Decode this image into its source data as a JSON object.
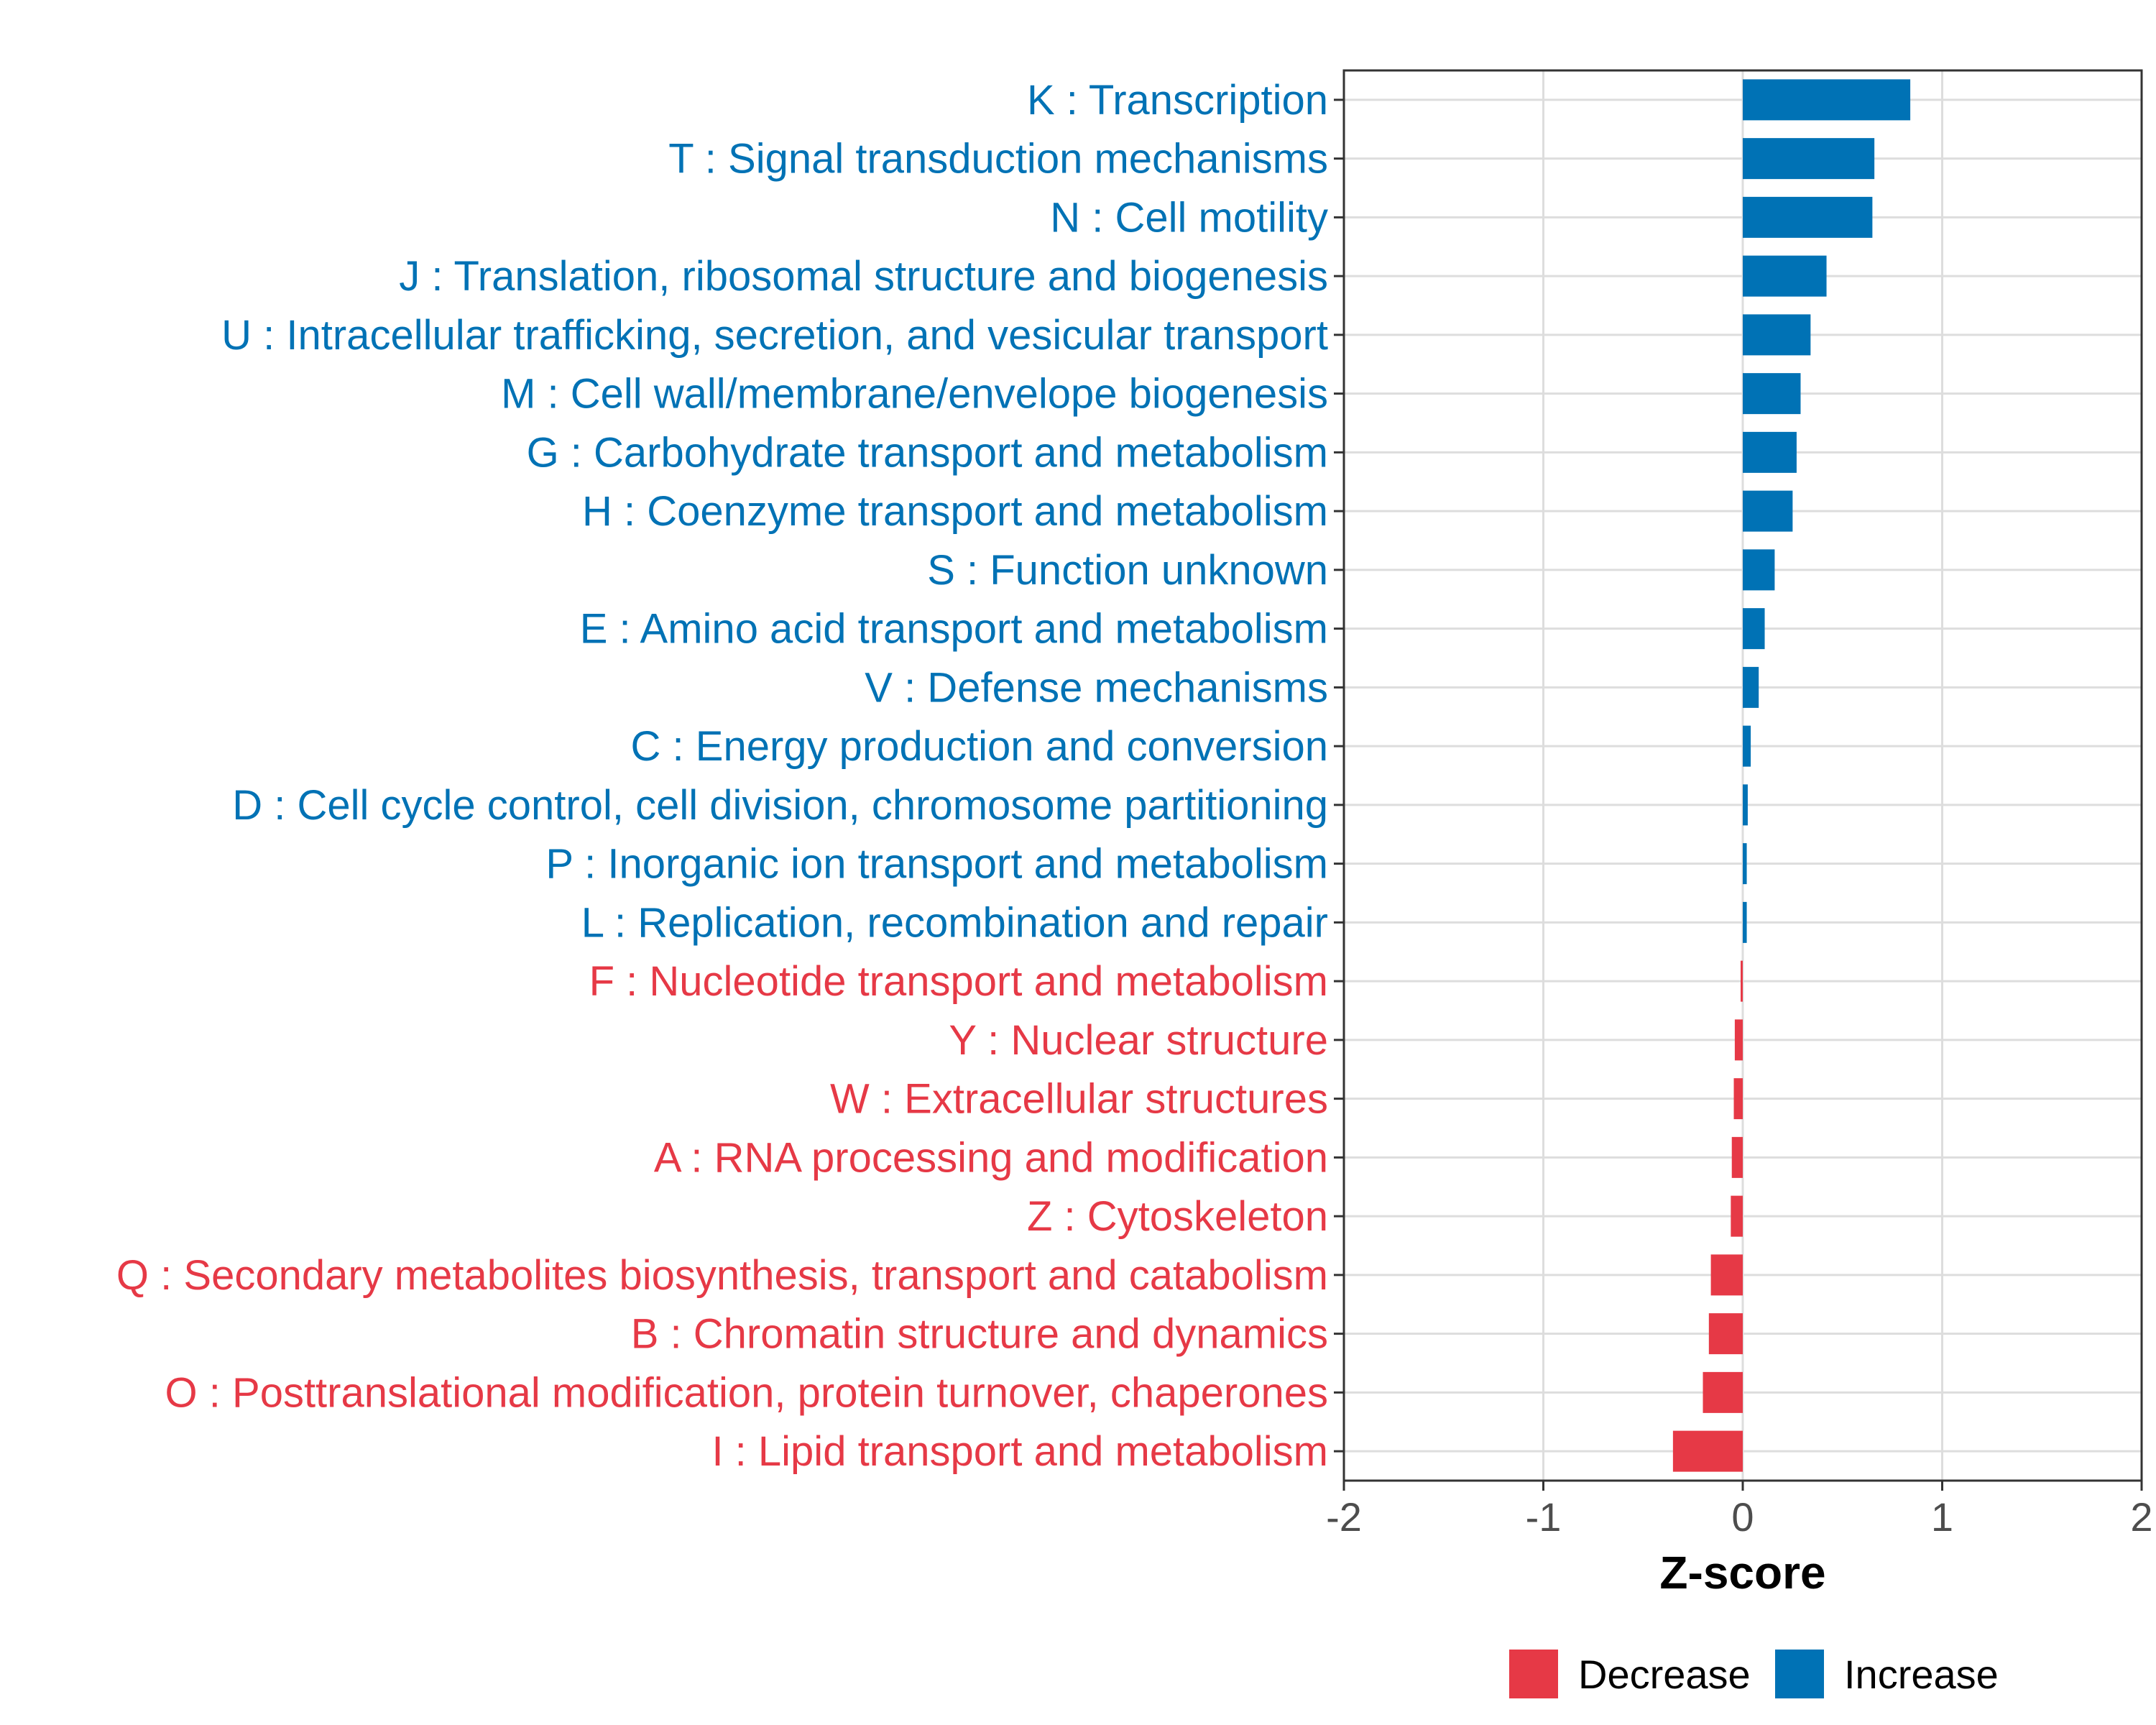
{
  "chart_data": {
    "type": "bar",
    "orientation": "horizontal",
    "xlabel": "Z-score",
    "xlim": [
      -2,
      2
    ],
    "xticks": [
      "-2",
      "-1",
      "0",
      "1",
      "2"
    ],
    "grid": true,
    "colors": {
      "Increase": "#0072B5",
      "Decrease": "#E63946"
    },
    "legend": {
      "position": "bottom",
      "entries": [
        "Decrease",
        "Increase"
      ]
    },
    "categories": [
      "K : Transcription",
      "T : Signal transduction mechanisms",
      "N : Cell motility",
      "J : Translation, ribosomal structure and biogenesis",
      "U : Intracellular trafficking, secretion, and vesicular transport",
      "M : Cell wall/membrane/envelope biogenesis",
      "G : Carbohydrate transport and metabolism",
      "H : Coenzyme transport and metabolism",
      "S : Function unknown",
      "E : Amino acid transport and metabolism",
      "V : Defense mechanisms",
      "C : Energy production and conversion",
      "D : Cell cycle control, cell division, chromosome partitioning",
      "P : Inorganic ion transport and metabolism",
      "L : Replication, recombination and repair",
      "F : Nucleotide transport and metabolism",
      "Y : Nuclear structure",
      "W : Extracellular structures",
      "A : RNA processing and modification",
      "Z : Cytoskeleton",
      "Q : Secondary metabolites biosynthesis, transport and catabolism",
      "B : Chromatin structure and dynamics",
      "O : Posttranslational modification, protein turnover, chaperones",
      "I : Lipid transport and metabolism"
    ],
    "values": [
      0.84,
      0.66,
      0.65,
      0.42,
      0.34,
      0.29,
      0.27,
      0.25,
      0.16,
      0.11,
      0.08,
      0.04,
      0.025,
      0.02,
      0.02,
      -0.005,
      -0.04,
      -0.045,
      -0.055,
      -0.06,
      -0.16,
      -0.17,
      -0.2,
      -0.35
    ],
    "groups": [
      "Increase",
      "Increase",
      "Increase",
      "Increase",
      "Increase",
      "Increase",
      "Increase",
      "Increase",
      "Increase",
      "Increase",
      "Increase",
      "Increase",
      "Increase",
      "Increase",
      "Increase",
      "Decrease",
      "Decrease",
      "Decrease",
      "Decrease",
      "Decrease",
      "Decrease",
      "Decrease",
      "Decrease",
      "Decrease"
    ]
  }
}
